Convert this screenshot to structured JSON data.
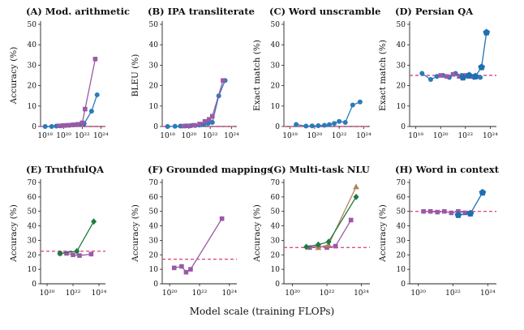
{
  "figure": {
    "xlabel": "Model scale (training FLOPs)"
  },
  "chart_data": [
    {
      "type": "line",
      "title": "(A) Mod. arithmetic",
      "ylabel": "Accuracy (%)",
      "ylim": [
        0,
        50
      ],
      "yticks": [
        0,
        10,
        20,
        30,
        40,
        50
      ],
      "xlim": [
        17.5,
        24.5
      ],
      "xticks": [
        18,
        20,
        22,
        24
      ],
      "xtick_labels": [
        "10¹⁸",
        "10²⁰",
        "10²²",
        "10²⁴"
      ],
      "baseline": 0,
      "series": [
        {
          "color": "#2b7bb9",
          "marker": "circle",
          "x": [
            18,
            18.7,
            19.2,
            19.7,
            20.2,
            20.6,
            21.0,
            21.4,
            21.8,
            22.2,
            23.0,
            23.6
          ],
          "y": [
            0,
            0,
            0.2,
            0.3,
            0.5,
            0.6,
            0.8,
            1.0,
            1.2,
            1.4,
            7.5,
            15.5
          ]
        },
        {
          "color": "#9b59a6",
          "marker": "square",
          "x": [
            19.5,
            20.0,
            20.5,
            21.0,
            21.5,
            22.0,
            22.3,
            23.4
          ],
          "y": [
            0.3,
            0.5,
            0.6,
            0.8,
            1.0,
            1.8,
            8.5,
            33
          ]
        }
      ]
    },
    {
      "type": "line",
      "title": "(B) IPA transliterate",
      "ylabel": "BLEU (%)",
      "ylim": [
        0,
        50
      ],
      "yticks": [
        0,
        10,
        20,
        30,
        40,
        50
      ],
      "xlim": [
        17.5,
        24.5
      ],
      "xticks": [
        18,
        20,
        22,
        24
      ],
      "xtick_labels": [
        "10¹⁸",
        "10²⁰",
        "10²²",
        "10²⁴"
      ],
      "baseline": 0,
      "series": [
        {
          "color": "#2b7bb9",
          "marker": "circle",
          "x": [
            18,
            18.7,
            19.2,
            19.7,
            20.2,
            20.6,
            21.0,
            21.4,
            21.8,
            22.2,
            22.8,
            23.4
          ],
          "y": [
            0,
            0.1,
            0.2,
            0.3,
            0.4,
            0.5,
            0.7,
            1.0,
            1.5,
            2.0,
            15,
            22.5
          ]
        },
        {
          "color": "#9b59a6",
          "marker": "square",
          "x": [
            19.5,
            20.0,
            20.5,
            21.0,
            21.5,
            21.9,
            22.2,
            23.2
          ],
          "y": [
            0.2,
            0.3,
            0.6,
            1.2,
            2.5,
            3.5,
            5,
            22.5
          ]
        }
      ]
    },
    {
      "type": "line",
      "title": "(C) Word unscramble",
      "ylabel": "Exact match (%)",
      "ylim": [
        0,
        50
      ],
      "yticks": [
        0,
        10,
        20,
        30,
        40,
        50
      ],
      "xlim": [
        17.5,
        24.5
      ],
      "xticks": [
        18,
        20,
        22,
        24
      ],
      "xtick_labels": [
        "10¹⁸",
        "10²⁰",
        "10²²",
        "10²⁴"
      ],
      "baseline": 0,
      "series": [
        {
          "color": "#2b7bb9",
          "marker": "circle",
          "x": [
            18.5,
            19.3,
            19.8,
            20.3,
            20.8,
            21.2,
            21.6,
            22.0,
            22.5,
            23.1,
            23.7
          ],
          "y": [
            1,
            0.2,
            0.3,
            0.4,
            0.6,
            0.9,
            1.5,
            2.5,
            2.0,
            10.5,
            12
          ]
        }
      ]
    },
    {
      "type": "line",
      "title": "(D) Persian QA",
      "ylabel": "Exact match (%)",
      "ylim": [
        0,
        50
      ],
      "yticks": [
        0,
        10,
        20,
        30,
        40,
        50
      ],
      "xlim": [
        17.5,
        24.5
      ],
      "xticks": [
        18,
        20,
        22,
        24
      ],
      "xtick_labels": [
        "10¹⁸",
        "10²⁰",
        "10²²",
        "10²⁴"
      ],
      "baseline": 25,
      "series": [
        {
          "color": "#2b7bb9",
          "marker": "circle",
          "x": [
            18.5,
            19.2,
            19.7,
            20.2,
            20.7,
            21.2,
            21.7,
            22.2,
            22.7,
            23.2
          ],
          "y": [
            26,
            23,
            24.5,
            25,
            24,
            26,
            25,
            24.5,
            24,
            24
          ]
        },
        {
          "color": "#9b59a6",
          "marker": "square",
          "x": [
            20.0,
            20.5,
            21.0,
            21.5,
            22.0,
            22.5
          ],
          "y": [
            25,
            24.5,
            25.5,
            24.5,
            25,
            24.5
          ]
        },
        {
          "color": "#1f6fb2",
          "marker": "pentagon",
          "x": [
            21.8,
            22.3,
            22.8,
            23.3,
            23.7
          ],
          "y": [
            24,
            25,
            24.5,
            29,
            46
          ]
        }
      ]
    },
    {
      "type": "line",
      "title": "(E) TruthfulQA",
      "ylabel": "Accuracy (%)",
      "ylim": [
        0,
        70
      ],
      "yticks": [
        0,
        10,
        20,
        30,
        40,
        50,
        60,
        70
      ],
      "xlim": [
        19.5,
        24.5
      ],
      "xticks": [
        20,
        22,
        24
      ],
      "xtick_labels": [
        "10²⁰",
        "10²²",
        "10²⁴"
      ],
      "baseline": 22.5,
      "series": [
        {
          "color": "#9b59a6",
          "marker": "square",
          "x": [
            21.0,
            21.5,
            22.0,
            22.5,
            23.4
          ],
          "y": [
            21,
            21,
            20,
            19.5,
            20.5
          ]
        },
        {
          "color": "#1e7a3e",
          "marker": "diamond",
          "x": [
            21.0,
            22.3,
            23.6
          ],
          "y": [
            21,
            22.5,
            43
          ]
        }
      ]
    },
    {
      "type": "line",
      "title": "(F) Grounded mappings",
      "ylabel": "Accuracy (%)",
      "ylim": [
        0,
        70
      ],
      "yticks": [
        0,
        10,
        20,
        30,
        40,
        50,
        60,
        70
      ],
      "xlim": [
        19.5,
        24.5
      ],
      "xticks": [
        20,
        22,
        24
      ],
      "xtick_labels": [
        "10²⁰",
        "10²²",
        "10²⁴"
      ],
      "baseline": 17,
      "series": [
        {
          "color": "#9b59a6",
          "marker": "square",
          "x": [
            20.3,
            20.8,
            21.1,
            21.4,
            23.5
          ],
          "y": [
            11,
            12,
            8,
            10,
            45
          ]
        }
      ]
    },
    {
      "type": "line",
      "title": "(G) Multi-task NLU",
      "ylabel": "Accuracy (%)",
      "ylim": [
        0,
        70
      ],
      "yticks": [
        0,
        10,
        20,
        30,
        40,
        50,
        60,
        70
      ],
      "xlim": [
        19.5,
        24.5
      ],
      "xticks": [
        20,
        22,
        24
      ],
      "xtick_labels": [
        "10²⁰",
        "10²²",
        "10²⁴"
      ],
      "baseline": 25,
      "series": [
        {
          "color": "#9b59a6",
          "marker": "square",
          "x": [
            21.0,
            21.5,
            22.0,
            22.5,
            23.4
          ],
          "y": [
            25,
            26,
            25,
            26,
            44
          ]
        },
        {
          "color": "#b5835a",
          "marker": "triangle",
          "x": [
            21.5,
            22.1,
            23.7
          ],
          "y": [
            25,
            27,
            67
          ]
        },
        {
          "color": "#1e7a3e",
          "marker": "diamond",
          "x": [
            20.8,
            21.5,
            22.1,
            23.7
          ],
          "y": [
            25.5,
            27,
            29,
            60
          ]
        }
      ]
    },
    {
      "type": "line",
      "title": "(H) Word in context",
      "ylabel": "Accuracy (%)",
      "ylim": [
        0,
        70
      ],
      "yticks": [
        0,
        10,
        20,
        30,
        40,
        50,
        60,
        70
      ],
      "xlim": [
        19.5,
        24.5
      ],
      "xticks": [
        20,
        22,
        24
      ],
      "xtick_labels": [
        "10²⁰",
        "10²²",
        "10²⁴"
      ],
      "baseline": 50,
      "series": [
        {
          "color": "#9b59a6",
          "marker": "square",
          "x": [
            20.3,
            20.7,
            21.1,
            21.5,
            21.9,
            22.3,
            22.7
          ],
          "y": [
            50,
            50,
            49.5,
            50,
            49,
            50,
            49
          ]
        },
        {
          "color": "#1f6fb2",
          "marker": "pentagon",
          "x": [
            22.3,
            23.0,
            23.7
          ],
          "y": [
            47.5,
            48.5,
            63
          ]
        }
      ]
    }
  ]
}
